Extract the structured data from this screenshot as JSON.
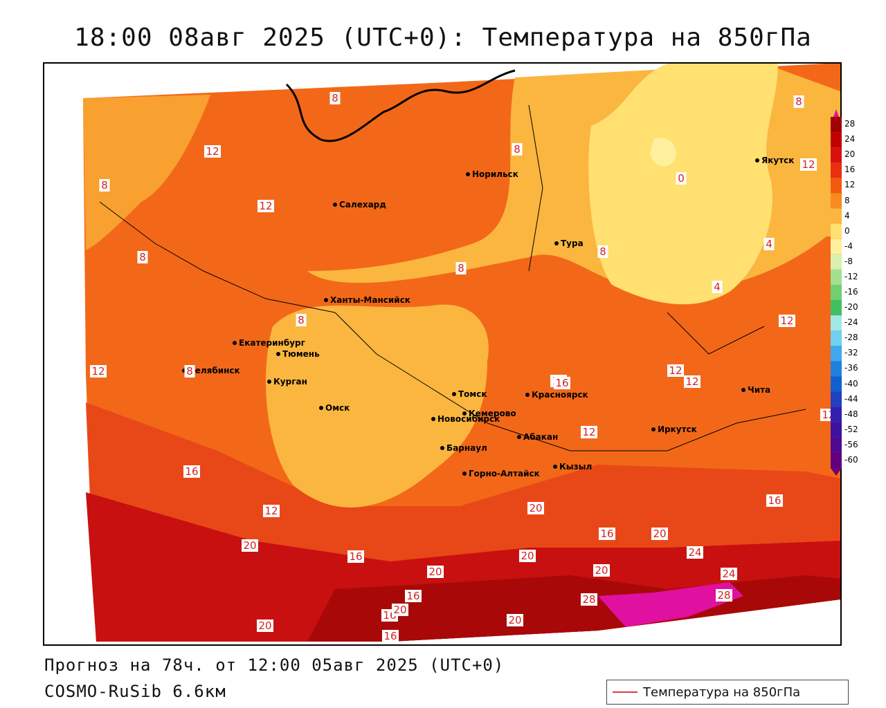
{
  "title": "18:00 08авг 2025 (UTC+0): Температура на 850гПа",
  "footer": {
    "forecast": "Прогноз на 78ч. от 12:00 05авг 2025 (UTC+0)",
    "model": "COSMO-RuSib 6.6км"
  },
  "legend": {
    "label": "Температура на 850гПа",
    "line_color": "#e0383c"
  },
  "colorbar": {
    "ticks": [
      "28",
      "24",
      "20",
      "16",
      "12",
      "8",
      "4",
      "0",
      "-4",
      "-8",
      "-12",
      "-16",
      "-20",
      "-24",
      "-28",
      "-32",
      "-36",
      "-40",
      "-44",
      "-48",
      "-52",
      "-56",
      "-60"
    ],
    "colors": [
      "#a00000",
      "#c00000",
      "#d81010",
      "#e83010",
      "#f25a10",
      "#f88a20",
      "#fbb640",
      "#ffe070",
      "#fff0a0",
      "#d8f0b0",
      "#a0e090",
      "#70d070",
      "#40c060",
      "#a0e8e8",
      "#70d0f0",
      "#40a8f0",
      "#2080e0",
      "#1060d0",
      "#2040c0",
      "#3020b0",
      "#4010a0",
      "#500890",
      "#600080"
    ]
  },
  "cities": [
    {
      "name": "Норильск"
    },
    {
      "name": "Салехард"
    },
    {
      "name": "Тура"
    },
    {
      "name": "Якутск"
    },
    {
      "name": "Ханты-Мансийск"
    },
    {
      "name": "Екатеринбург"
    },
    {
      "name": "Тюмень"
    },
    {
      "name": "Челябинск"
    },
    {
      "name": "Курган"
    },
    {
      "name": "Омск"
    },
    {
      "name": "Новосибирск"
    },
    {
      "name": "Томск"
    },
    {
      "name": "Кемерово"
    },
    {
      "name": "Красноярск"
    },
    {
      "name": "Барнаул"
    },
    {
      "name": "Абакан"
    },
    {
      "name": "Иркутск"
    },
    {
      "name": "Чита"
    },
    {
      "name": "Кызыл"
    },
    {
      "name": "Горно-Алтайск"
    }
  ],
  "isotherm_labels": [
    "8",
    "12",
    "8",
    "12",
    "8",
    "0",
    "12",
    "8",
    "4",
    "4",
    "8",
    "12",
    "8",
    "8",
    "8",
    "12",
    "8",
    "16",
    "12",
    "12",
    "12",
    "12",
    "12",
    "16",
    "12",
    "16",
    "20",
    "16",
    "16",
    "20",
    "20",
    "16",
    "20",
    "20",
    "24",
    "24",
    "16",
    "20",
    "20",
    "28",
    "28",
    "20",
    "20",
    "16"
  ]
}
